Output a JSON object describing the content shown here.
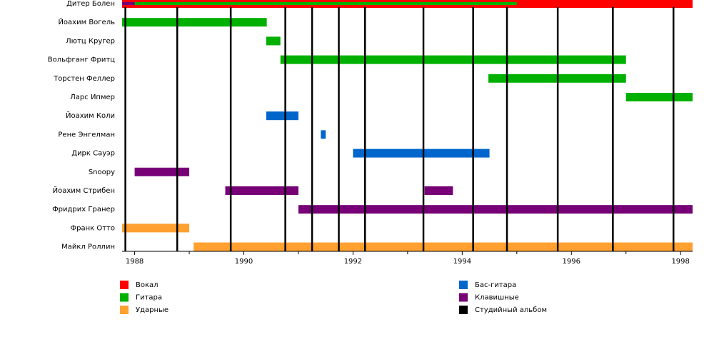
{
  "chart_data": {
    "type": "timeline",
    "categories": [
      "Дитер Болен",
      "Йоахим Вогель",
      "Лютц Кругер",
      "Вольфганг Фритц",
      "Торстен Феллер",
      "Ларс Ипмер",
      "Йоахим Коли",
      "Рене Энгелман",
      "Дирк Сауэр",
      "Snoopy",
      "Йоахим Стрибен",
      "Фридрих Гранер",
      "Франк Отто",
      "Майкл Роллин"
    ],
    "xlim": [
      1987.77,
      1998.22
    ],
    "xticks": [
      1988,
      1990,
      1992,
      1994,
      1996,
      1998
    ],
    "xminorticks": [
      1989,
      1991,
      1993,
      1995,
      1997
    ],
    "series": [
      {
        "name": "Вокал",
        "color": "#ff0000",
        "bars": [
          {
            "row": 0,
            "start": 1987.77,
            "end": 1998.22
          }
        ]
      },
      {
        "name": "Гитара",
        "color": "#00b000",
        "bars": [
          {
            "row": 0,
            "start": 1988.0,
            "end": 1995.0
          },
          {
            "row": 1,
            "start": 1987.77,
            "end": 1990.42
          },
          {
            "row": 2,
            "start": 1990.41,
            "end": 1990.67
          },
          {
            "row": 3,
            "start": 1990.67,
            "end": 1997.0
          },
          {
            "row": 4,
            "start": 1994.48,
            "end": 1997.0
          },
          {
            "row": 5,
            "start": 1997.0,
            "end": 1998.22
          }
        ]
      },
      {
        "name": "Ударные",
        "color": "#ffa030",
        "bars": [
          {
            "row": 12,
            "start": 1987.77,
            "end": 1989.0
          },
          {
            "row": 13,
            "start": 1989.08,
            "end": 1998.22
          }
        ]
      },
      {
        "name": "Бас-гитара",
        "color": "#0066cc",
        "bars": [
          {
            "row": 6,
            "start": 1990.41,
            "end": 1991.0
          },
          {
            "row": 7,
            "start": 1991.41,
            "end": 1991.5
          },
          {
            "row": 8,
            "start": 1992.0,
            "end": 1994.5
          }
        ]
      },
      {
        "name": "Клавишные",
        "color": "#770077",
        "bars": [
          {
            "row": 0,
            "start": 1987.77,
            "end": 1988.0
          },
          {
            "row": 9,
            "start": 1988.0,
            "end": 1989.0
          },
          {
            "row": 10,
            "start": 1989.66,
            "end": 1991.0
          },
          {
            "row": 10,
            "start": 1993.31,
            "end": 1993.83
          },
          {
            "row": 11,
            "start": 1991.0,
            "end": 1998.22
          }
        ]
      },
      {
        "name": "Студийный альбом",
        "color": "#000000",
        "lines": [
          1987.83,
          1988.78,
          1989.76,
          1990.76,
          1991.25,
          1991.74,
          1992.22,
          1993.29,
          1994.2,
          1994.82,
          1995.75,
          1996.76,
          1997.87
        ]
      }
    ]
  }
}
